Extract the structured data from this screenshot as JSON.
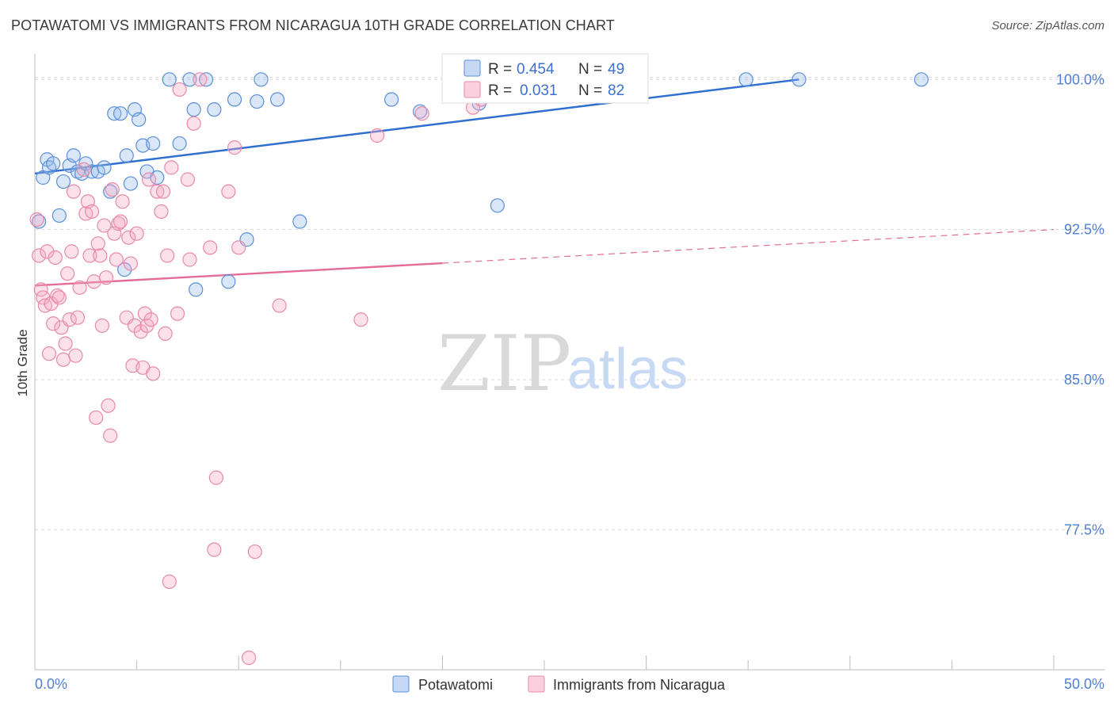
{
  "title": "POTAWATOMI VS IMMIGRANTS FROM NICARAGUA 10TH GRADE CORRELATION CHART",
  "source": "Source: ZipAtlas.com",
  "watermark": {
    "zip": "ZIP",
    "atlas": "atlas"
  },
  "colors": {
    "blue": "#5b8fd8",
    "blue_fill": "rgba(150,185,235,0.35)",
    "blue_line": "#2f6fcf",
    "pink": "#e88aa8",
    "pink_fill": "rgba(245,170,195,0.35)",
    "pink_line": "#e36c98",
    "grid": "#d8d8d8",
    "axis": "#bdbdbd",
    "label_blue": "#4f7fd0"
  },
  "legend": {
    "rows": [
      {
        "r_label": "R =",
        "r_value": "0.454",
        "n_label": "N =",
        "n_value": "49"
      },
      {
        "r_label": "R =",
        "r_value": "0.031",
        "n_label": "N =",
        "n_value": "82"
      }
    ]
  },
  "chart_data": {
    "type": "scatter",
    "title": "POTAWATOMI VS IMMIGRANTS FROM NICARAGUA 10TH GRADE CORRELATION CHART",
    "xlabel": "",
    "ylabel": "10th Grade",
    "xlim": [
      0,
      50
    ],
    "ylim": [
      70.5,
      101.2
    ],
    "x_tick_labels": [
      "0.0%",
      "50.0%"
    ],
    "y_ticks": [
      77.5,
      85.0,
      92.5,
      100.0
    ],
    "y_tick_labels": [
      "77.5%",
      "85.0%",
      "92.5%",
      "100.0%"
    ],
    "grid": true,
    "legend_position": "top-center",
    "series": [
      {
        "name": "Potawatomi",
        "trend": {
          "x0": 0.0,
          "y0": 95.3,
          "x1": 37.5,
          "y1": 100.0,
          "solid_until": 37.5
        },
        "points": [
          [
            0.2,
            92.9
          ],
          [
            0.4,
            95.1
          ],
          [
            0.6,
            96.0
          ],
          [
            0.7,
            95.6
          ],
          [
            0.9,
            95.8
          ],
          [
            1.2,
            93.2
          ],
          [
            1.4,
            94.9
          ],
          [
            1.7,
            95.7
          ],
          [
            1.9,
            96.2
          ],
          [
            2.1,
            95.4
          ],
          [
            2.3,
            95.3
          ],
          [
            2.5,
            95.8
          ],
          [
            2.8,
            95.4
          ],
          [
            3.1,
            95.4
          ],
          [
            3.4,
            95.6
          ],
          [
            3.7,
            94.4
          ],
          [
            3.9,
            98.3
          ],
          [
            4.2,
            98.3
          ],
          [
            4.4,
            90.5
          ],
          [
            4.5,
            96.2
          ],
          [
            4.7,
            94.8
          ],
          [
            4.9,
            98.5
          ],
          [
            5.1,
            98.0
          ],
          [
            5.3,
            96.7
          ],
          [
            5.5,
            95.4
          ],
          [
            5.8,
            96.8
          ],
          [
            6.0,
            95.1
          ],
          [
            6.6,
            100.0
          ],
          [
            7.1,
            96.8
          ],
          [
            7.6,
            100.0
          ],
          [
            7.8,
            98.5
          ],
          [
            7.9,
            89.5
          ],
          [
            8.4,
            100.0
          ],
          [
            8.8,
            98.5
          ],
          [
            9.5,
            89.9
          ],
          [
            9.8,
            99.0
          ],
          [
            10.4,
            92.0
          ],
          [
            10.9,
            98.9
          ],
          [
            11.1,
            100.0
          ],
          [
            11.9,
            99.0
          ],
          [
            13.0,
            92.9
          ],
          [
            17.5,
            99.0
          ],
          [
            18.9,
            98.4
          ],
          [
            21.8,
            98.8
          ],
          [
            22.5,
            100.0
          ],
          [
            22.7,
            93.7
          ],
          [
            34.9,
            100.0
          ],
          [
            37.5,
            100.0
          ],
          [
            43.5,
            100.0
          ]
        ]
      },
      {
        "name": "Immigrants from Nicaragua",
        "trend": {
          "x0": 0.0,
          "y0": 89.7,
          "x1": 50.0,
          "y1": 92.5,
          "solid_until": 20.0
        },
        "points": [
          [
            0.1,
            93.0
          ],
          [
            0.2,
            91.2
          ],
          [
            0.3,
            89.5
          ],
          [
            0.4,
            89.1
          ],
          [
            0.5,
            88.7
          ],
          [
            0.6,
            91.4
          ],
          [
            0.7,
            86.3
          ],
          [
            0.8,
            88.8
          ],
          [
            0.9,
            87.8
          ],
          [
            1.0,
            91.1
          ],
          [
            1.1,
            89.2
          ],
          [
            1.2,
            89.1
          ],
          [
            1.3,
            87.6
          ],
          [
            1.4,
            86.0
          ],
          [
            1.5,
            86.8
          ],
          [
            1.6,
            90.3
          ],
          [
            1.7,
            88.0
          ],
          [
            1.8,
            91.4
          ],
          [
            1.9,
            94.4
          ],
          [
            2.0,
            86.2
          ],
          [
            2.1,
            88.1
          ],
          [
            2.2,
            89.6
          ],
          [
            2.4,
            95.5
          ],
          [
            2.5,
            93.3
          ],
          [
            2.6,
            93.9
          ],
          [
            2.7,
            91.2
          ],
          [
            2.8,
            93.4
          ],
          [
            2.9,
            89.9
          ],
          [
            3.0,
            83.1
          ],
          [
            3.1,
            91.8
          ],
          [
            3.2,
            91.2
          ],
          [
            3.3,
            87.7
          ],
          [
            3.4,
            92.7
          ],
          [
            3.5,
            90.1
          ],
          [
            3.6,
            83.7
          ],
          [
            3.7,
            82.2
          ],
          [
            3.8,
            94.5
          ],
          [
            3.9,
            92.3
          ],
          [
            4.0,
            91.0
          ],
          [
            4.1,
            92.8
          ],
          [
            4.2,
            92.9
          ],
          [
            4.3,
            93.9
          ],
          [
            4.5,
            88.1
          ],
          [
            4.6,
            92.1
          ],
          [
            4.7,
            90.8
          ],
          [
            4.8,
            85.7
          ],
          [
            4.9,
            87.7
          ],
          [
            5.0,
            92.3
          ],
          [
            5.2,
            87.4
          ],
          [
            5.3,
            85.6
          ],
          [
            5.4,
            88.3
          ],
          [
            5.5,
            87.7
          ],
          [
            5.6,
            95.0
          ],
          [
            5.7,
            88.0
          ],
          [
            5.8,
            85.3
          ],
          [
            6.0,
            94.4
          ],
          [
            6.2,
            93.4
          ],
          [
            6.3,
            94.4
          ],
          [
            6.4,
            87.3
          ],
          [
            6.5,
            91.2
          ],
          [
            6.6,
            74.9
          ],
          [
            6.7,
            95.6
          ],
          [
            7.0,
            88.3
          ],
          [
            7.1,
            99.5
          ],
          [
            7.5,
            95.0
          ],
          [
            7.6,
            91.0
          ],
          [
            7.8,
            97.8
          ],
          [
            8.1,
            100.0
          ],
          [
            8.6,
            91.6
          ],
          [
            8.8,
            76.5
          ],
          [
            8.9,
            80.1
          ],
          [
            9.5,
            94.4
          ],
          [
            9.8,
            96.6
          ],
          [
            10.0,
            91.6
          ],
          [
            10.5,
            71.1
          ],
          [
            10.8,
            76.4
          ],
          [
            12.0,
            88.7
          ],
          [
            16.0,
            88.0
          ],
          [
            16.8,
            97.2
          ],
          [
            19.0,
            98.3
          ],
          [
            21.5,
            98.6
          ],
          [
            21.9,
            99.0
          ]
        ]
      }
    ]
  },
  "bottom_legend": [
    {
      "label": "Potawatomi"
    },
    {
      "label": "Immigrants from Nicaragua"
    }
  ]
}
